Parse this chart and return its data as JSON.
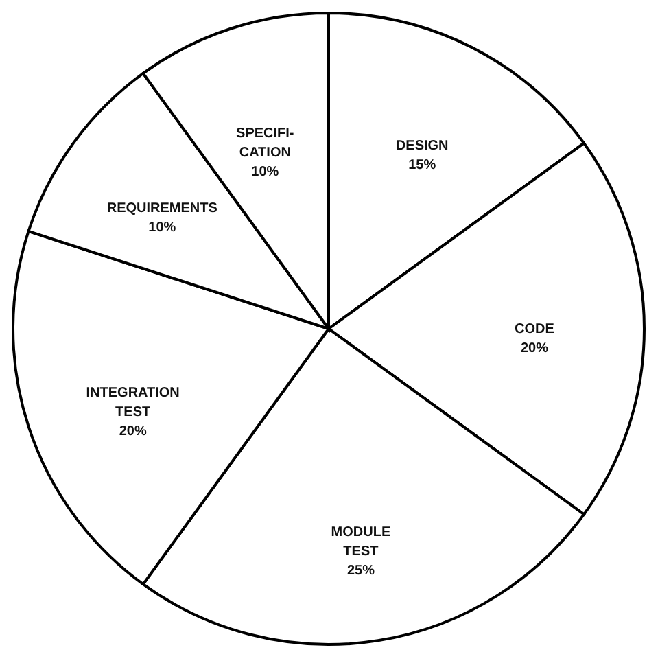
{
  "chart_data": {
    "type": "pie",
    "categories": [
      "DESIGN",
      "CODE",
      "MODULE TEST",
      "INTEGRATION TEST",
      "REQUIREMENTS",
      "SPECIFI-CATION"
    ],
    "values": [
      15,
      20,
      25,
      20,
      10,
      10
    ],
    "value_labels": [
      "15%",
      "20%",
      "25%",
      "20%",
      "10%",
      "10%"
    ],
    "colors": [
      "#ffffff",
      "#ffffff",
      "#ffffff",
      "#ffffff",
      "#ffffff",
      "#ffffff"
    ]
  }
}
